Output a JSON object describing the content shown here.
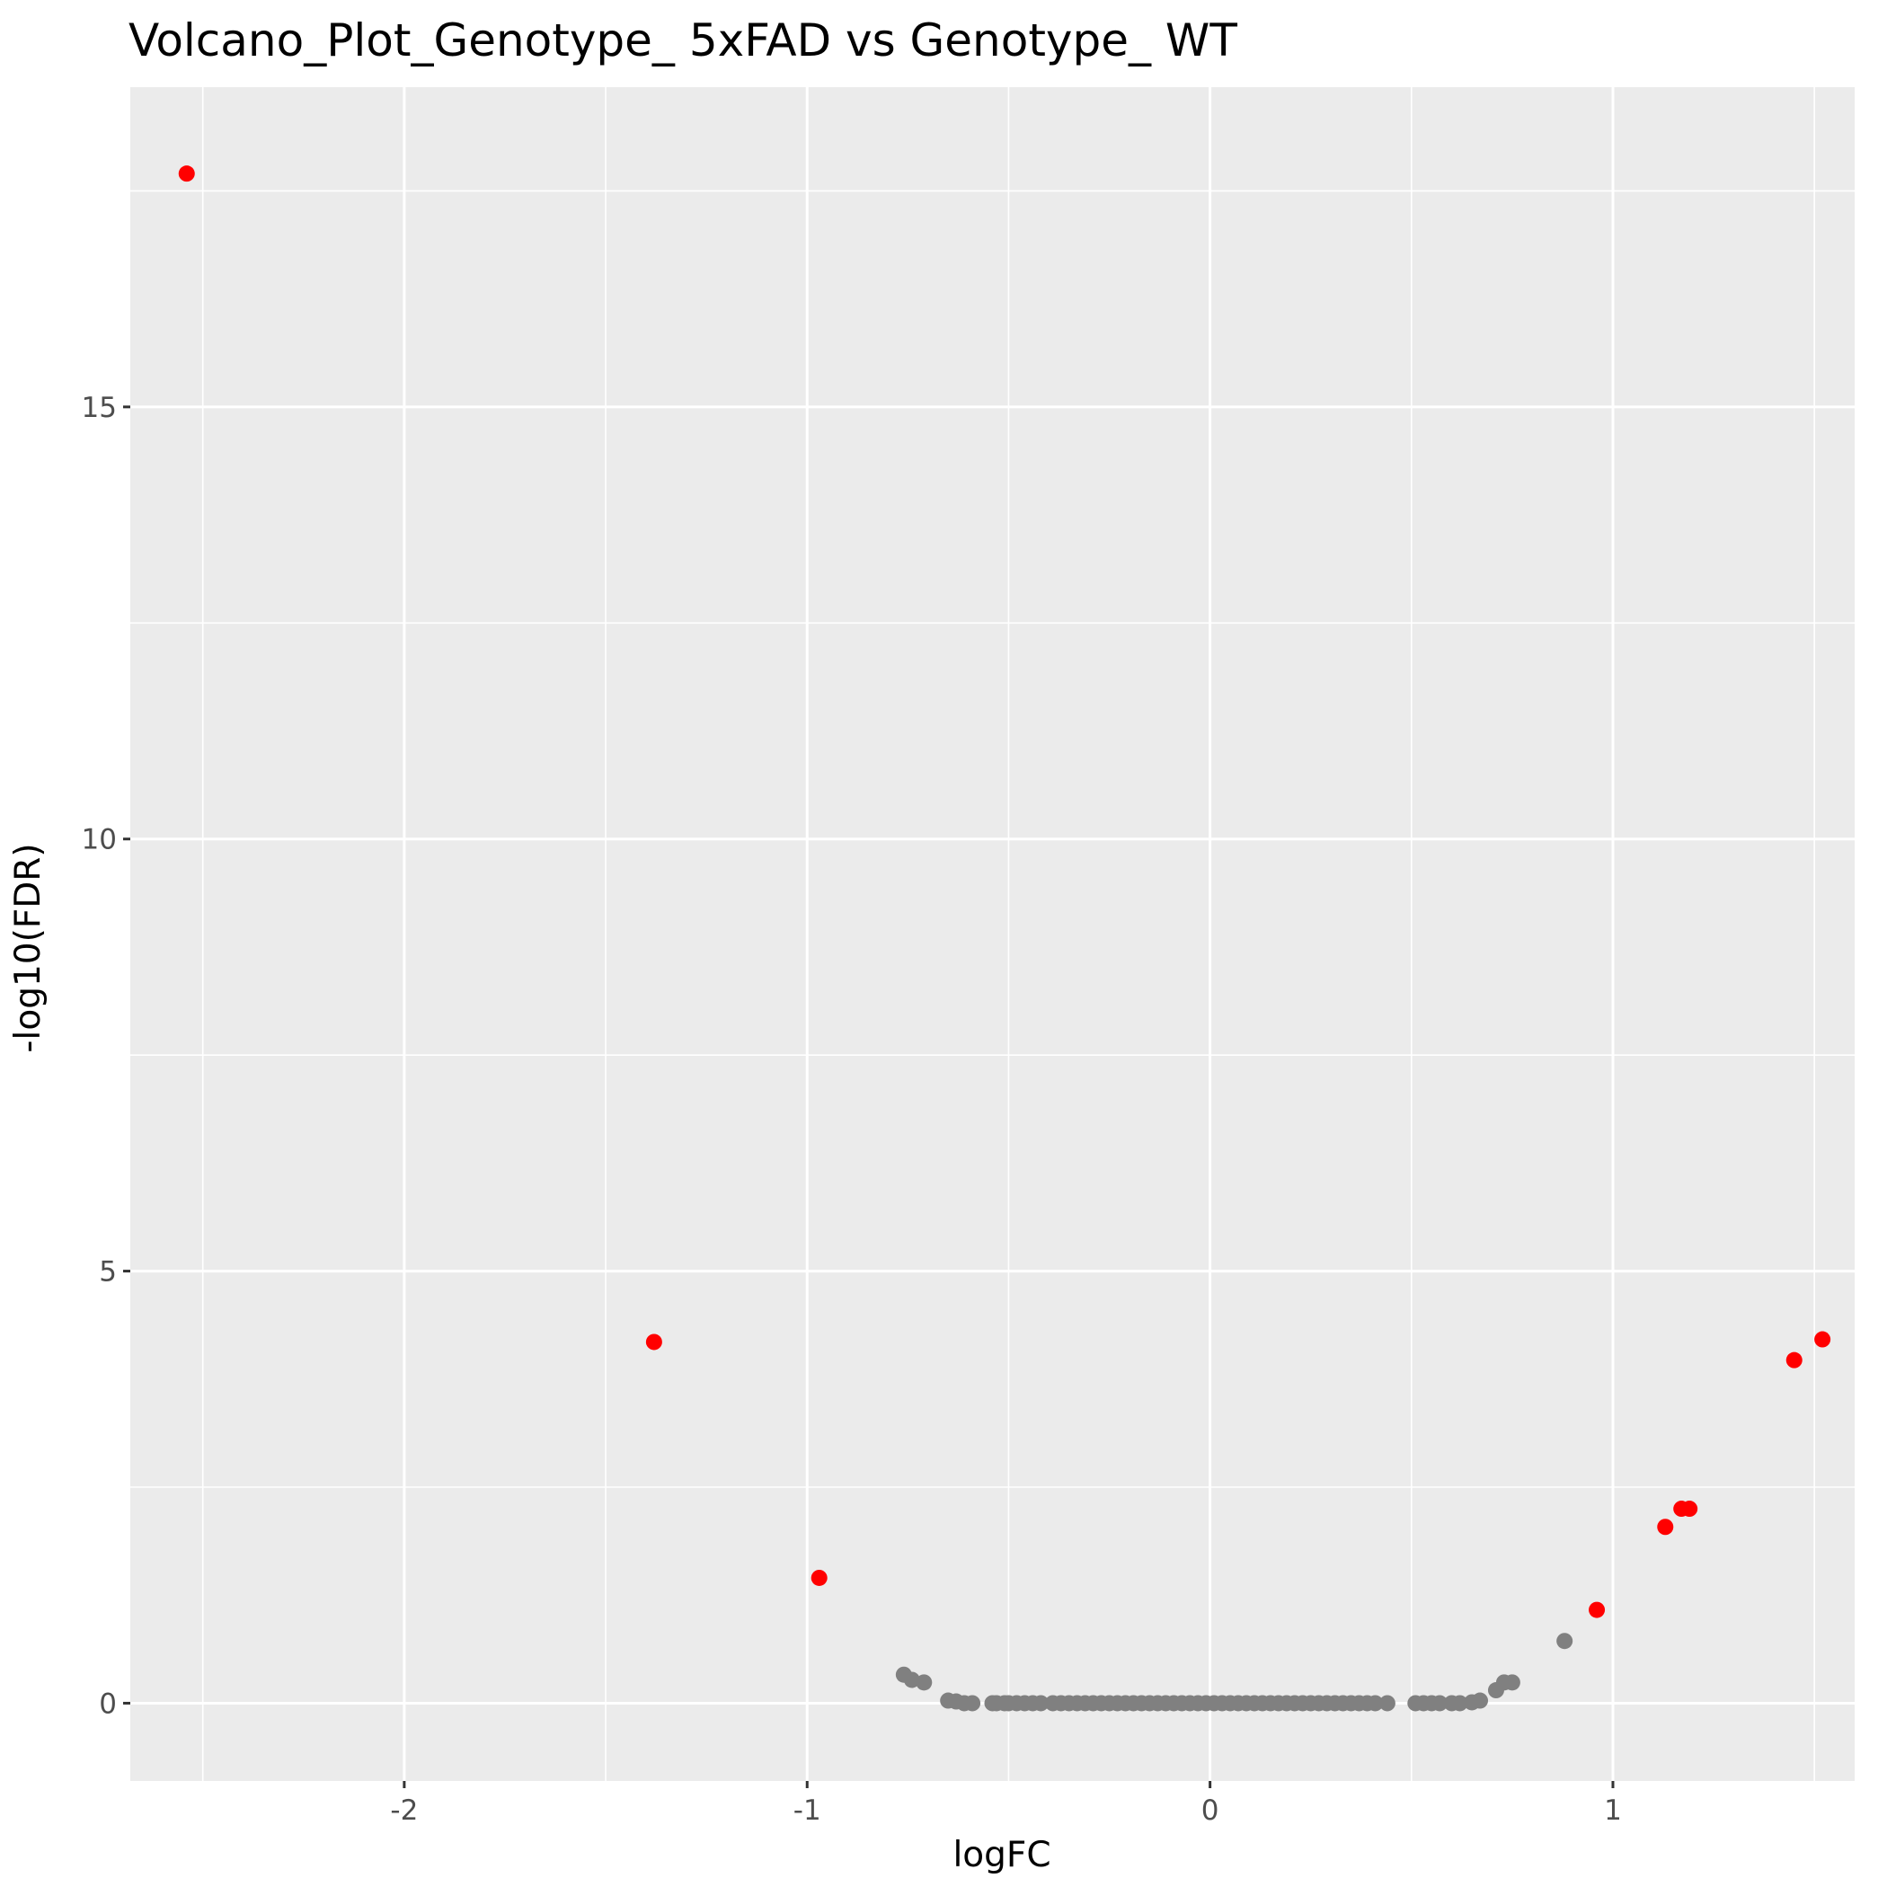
{
  "chart_data": {
    "type": "scatter",
    "title": "Volcano_Plot_Genotype_ 5xFAD vs Genotype_ WT",
    "xlabel": "logFC",
    "ylabel": "-log10(FDR)",
    "xlim": [
      -2.68,
      1.6
    ],
    "ylim": [
      -0.9,
      18.7
    ],
    "x_ticks": [
      -2,
      -1,
      0,
      1
    ],
    "x_tick_labels": [
      "-2",
      "-1",
      "0",
      "1"
    ],
    "y_ticks": [
      0,
      5,
      10,
      15
    ],
    "y_tick_labels": [
      "0",
      "5",
      "10",
      "15"
    ],
    "grid": true,
    "legend": "none",
    "colors": {
      "panel": "#ebebeb",
      "grid": "#ffffff",
      "significant": "#ff0000",
      "not_significant": "#808080"
    },
    "series": [
      {
        "color": "#ff0000",
        "points": [
          {
            "x": -2.54,
            "y": 17.7
          },
          {
            "x": -1.38,
            "y": 4.18
          },
          {
            "x": -0.97,
            "y": 1.45
          },
          {
            "x": 0.96,
            "y": 1.08
          },
          {
            "x": 1.13,
            "y": 2.04
          },
          {
            "x": 1.17,
            "y": 2.25
          },
          {
            "x": 1.19,
            "y": 2.25
          },
          {
            "x": 1.45,
            "y": 3.97
          },
          {
            "x": 1.52,
            "y": 4.21
          }
        ]
      },
      {
        "color": "#808080",
        "points": [
          {
            "x": -0.76,
            "y": 0.33
          },
          {
            "x": -0.74,
            "y": 0.27
          },
          {
            "x": -0.71,
            "y": 0.24
          },
          {
            "x": -0.65,
            "y": 0.03
          },
          {
            "x": -0.63,
            "y": 0.02
          },
          {
            "x": -0.61,
            "y": 0.0
          },
          {
            "x": -0.59,
            "y": 0.0
          },
          {
            "x": -0.54,
            "y": 0.0
          },
          {
            "x": -0.53,
            "y": 0.0
          },
          {
            "x": -0.51,
            "y": 0.0
          },
          {
            "x": -0.5,
            "y": 0.0
          },
          {
            "x": -0.48,
            "y": 0.0
          },
          {
            "x": -0.46,
            "y": 0.0
          },
          {
            "x": -0.44,
            "y": 0.0
          },
          {
            "x": -0.42,
            "y": 0.0
          },
          {
            "x": -0.39,
            "y": 0.0
          },
          {
            "x": -0.37,
            "y": 0.0
          },
          {
            "x": -0.35,
            "y": 0.0
          },
          {
            "x": -0.33,
            "y": 0.0
          },
          {
            "x": -0.31,
            "y": 0.0
          },
          {
            "x": -0.29,
            "y": 0.0
          },
          {
            "x": -0.27,
            "y": 0.0
          },
          {
            "x": -0.25,
            "y": 0.0
          },
          {
            "x": -0.23,
            "y": 0.0
          },
          {
            "x": -0.21,
            "y": 0.0
          },
          {
            "x": -0.19,
            "y": 0.0
          },
          {
            "x": -0.17,
            "y": 0.0
          },
          {
            "x": -0.15,
            "y": 0.0
          },
          {
            "x": -0.13,
            "y": 0.0
          },
          {
            "x": -0.11,
            "y": 0.0
          },
          {
            "x": -0.09,
            "y": 0.0
          },
          {
            "x": -0.07,
            "y": 0.0
          },
          {
            "x": -0.05,
            "y": 0.0
          },
          {
            "x": -0.03,
            "y": 0.0
          },
          {
            "x": -0.01,
            "y": 0.0
          },
          {
            "x": 0.01,
            "y": 0.0
          },
          {
            "x": 0.03,
            "y": 0.0
          },
          {
            "x": 0.05,
            "y": 0.0
          },
          {
            "x": 0.07,
            "y": 0.0
          },
          {
            "x": 0.09,
            "y": 0.0
          },
          {
            "x": 0.11,
            "y": 0.0
          },
          {
            "x": 0.13,
            "y": 0.0
          },
          {
            "x": 0.15,
            "y": 0.0
          },
          {
            "x": 0.17,
            "y": 0.0
          },
          {
            "x": 0.19,
            "y": 0.0
          },
          {
            "x": 0.21,
            "y": 0.0
          },
          {
            "x": 0.23,
            "y": 0.0
          },
          {
            "x": 0.25,
            "y": 0.0
          },
          {
            "x": 0.27,
            "y": 0.0
          },
          {
            "x": 0.29,
            "y": 0.0
          },
          {
            "x": 0.31,
            "y": 0.0
          },
          {
            "x": 0.33,
            "y": 0.0
          },
          {
            "x": 0.35,
            "y": 0.0
          },
          {
            "x": 0.37,
            "y": 0.0
          },
          {
            "x": 0.39,
            "y": 0.0
          },
          {
            "x": 0.41,
            "y": 0.0
          },
          {
            "x": 0.44,
            "y": 0.0
          },
          {
            "x": 0.51,
            "y": 0.0
          },
          {
            "x": 0.53,
            "y": 0.0
          },
          {
            "x": 0.55,
            "y": 0.0
          },
          {
            "x": 0.57,
            "y": 0.0
          },
          {
            "x": 0.6,
            "y": 0.0
          },
          {
            "x": 0.62,
            "y": 0.0
          },
          {
            "x": 0.65,
            "y": 0.01
          },
          {
            "x": 0.67,
            "y": 0.03
          },
          {
            "x": 0.71,
            "y": 0.15
          },
          {
            "x": 0.73,
            "y": 0.24
          },
          {
            "x": 0.75,
            "y": 0.24
          },
          {
            "x": 0.88,
            "y": 0.72
          }
        ]
      }
    ]
  }
}
